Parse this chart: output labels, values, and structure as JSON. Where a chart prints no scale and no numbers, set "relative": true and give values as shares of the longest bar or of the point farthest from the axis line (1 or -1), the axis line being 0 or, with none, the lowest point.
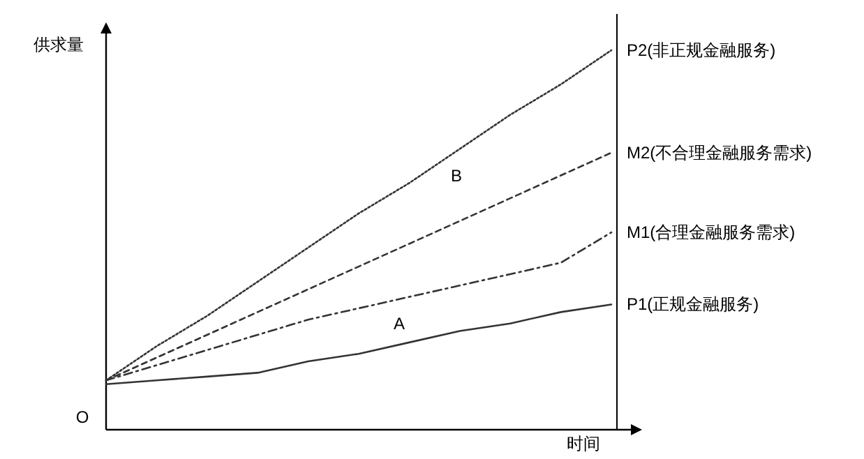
{
  "chart_data": {
    "type": "line",
    "relative": true,
    "xlabel": "时间",
    "ylabel": "供求量",
    "annotations": [
      "O",
      "A",
      "B"
    ],
    "categories": [
      null,
      null,
      null,
      null,
      null,
      null,
      null,
      null,
      null,
      null,
      null
    ],
    "series": [
      {
        "name": "P2(非正规金融服务)",
        "color": "#333333",
        "line_style": "dotted",
        "values": [
          0.13,
          0.22,
          0.3,
          0.39,
          0.48,
          0.57,
          0.65,
          0.74,
          0.83,
          0.91,
          1
        ]
      },
      {
        "name": "M2(不合理金融服务需求)",
        "color": "#333333",
        "line_style": "dashed",
        "values": [
          0.13,
          0.19,
          0.25,
          0.31,
          0.37,
          0.43,
          0.49,
          0.55,
          0.61,
          0.67,
          0.73
        ]
      },
      {
        "name": "M1(合理金融服务需求)",
        "color": "#333333",
        "line_style": "dashdot",
        "values": [
          0.13,
          0.17,
          0.21,
          0.25,
          0.29,
          0.32,
          0.35,
          0.38,
          0.41,
          0.44,
          0.52
        ]
      },
      {
        "name": "P1(正规金融服务)",
        "color": "#333333",
        "line_style": "solid",
        "values": [
          0.12,
          0.13,
          0.14,
          0.15,
          0.18,
          0.2,
          0.23,
          0.26,
          0.28,
          0.31,
          0.33
        ]
      }
    ]
  }
}
